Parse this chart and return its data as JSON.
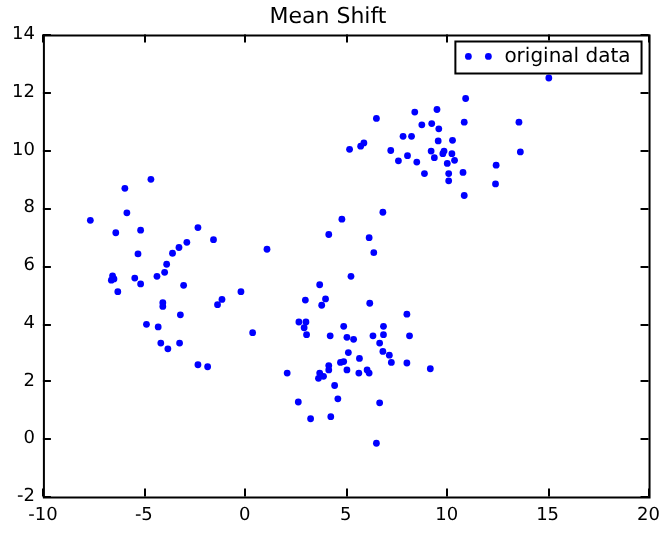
{
  "chart_data": {
    "type": "scatter",
    "title": "Mean Shift",
    "marker": "circle",
    "legend": "top right",
    "grid": false,
    "xlim": [
      -10,
      20
    ],
    "xticks": [
      -10,
      -5,
      0,
      5,
      10,
      15,
      20
    ],
    "ylim": [
      -2,
      14
    ],
    "yticks": [
      -2,
      0,
      2,
      4,
      6,
      8,
      10,
      12,
      14
    ],
    "series": [
      {
        "name": "original data",
        "color": "#0000ff",
        "x": [
          -7.65,
          -5.94,
          -4.65,
          -5.84,
          -6.39,
          -5.16,
          -5.29,
          -6.55,
          -6.48,
          -6.61,
          -6.29,
          -5.45,
          -5.16,
          -4.35,
          -3.97,
          -3.87,
          -3.58,
          -3.26,
          -2.87,
          -2.32,
          -1.55,
          -3.03,
          -4.06,
          -4.06,
          -4.87,
          -4.29,
          -4.16,
          -3.81,
          -3.23,
          -3.19,
          -1.35,
          -1.13,
          -0.19,
          -2.32,
          -1.84,
          0.39,
          1.1,
          2.1,
          2.65,
          3.26,
          4.26,
          2.68,
          2.94,
          3.03,
          3.06,
          3.0,
          3.71,
          3.81,
          4.0,
          4.23,
          3.71,
          3.65,
          3.9,
          4.16,
          4.16,
          4.45,
          4.61,
          4.74,
          4.9,
          4.9,
          5.06,
          5.13,
          5.39,
          5.06,
          5.68,
          5.65,
          6.06,
          6.16,
          6.19,
          6.35,
          6.68,
          6.84,
          6.87,
          6.87,
          7.16,
          7.26,
          8.03,
          8.16,
          8.03,
          9.19,
          6.68,
          6.52,
          4.16,
          4.81,
          5.26,
          6.16,
          6.39,
          6.84,
          5.19,
          5.74,
          5.9,
          6.52,
          7.23,
          7.61,
          7.84,
          8.06,
          8.26,
          8.42,
          8.52,
          8.77,
          8.9,
          9.23,
          9.26,
          9.39,
          9.52,
          9.61,
          9.58,
          9.81,
          9.87,
          10.1,
          10.03,
          10.1,
          10.26,
          10.29,
          10.39,
          10.81,
          10.87,
          10.94,
          10.87,
          12.45,
          12.42,
          13.58,
          13.65,
          15.06
        ],
        "values": [
          7.56,
          8.67,
          8.98,
          7.82,
          7.13,
          7.22,
          6.4,
          5.64,
          5.53,
          5.49,
          5.09,
          5.56,
          5.36,
          5.62,
          5.76,
          6.04,
          6.42,
          6.62,
          6.8,
          7.31,
          6.89,
          5.31,
          4.71,
          4.58,
          3.96,
          3.87,
          3.31,
          3.11,
          3.31,
          4.29,
          4.64,
          4.82,
          5.09,
          2.56,
          2.49,
          3.67,
          6.56,
          2.27,
          1.27,
          0.69,
          0.76,
          4.04,
          3.84,
          4.04,
          3.6,
          4.8,
          5.33,
          4.62,
          4.84,
          3.56,
          2.27,
          2.09,
          2.16,
          2.53,
          2.38,
          1.84,
          1.38,
          2.64,
          2.67,
          3.89,
          3.51,
          2.98,
          3.44,
          2.38,
          2.78,
          2.27,
          2.38,
          2.27,
          4.69,
          3.56,
          3.31,
          3.02,
          3.6,
          3.89,
          2.89,
          2.64,
          4.31,
          3.56,
          2.62,
          2.42,
          1.24,
          -0.16,
          7.07,
          7.6,
          5.62,
          6.96,
          6.44,
          7.84,
          10.02,
          10.13,
          10.24,
          11.09,
          9.98,
          9.62,
          10.47,
          9.8,
          10.47,
          11.31,
          9.58,
          10.87,
          9.18,
          9.96,
          10.91,
          9.73,
          11.4,
          10.73,
          10.31,
          9.87,
          9.96,
          9.18,
          9.53,
          8.93,
          9.87,
          10.33,
          9.64,
          9.22,
          10.96,
          11.78,
          8.42,
          9.47,
          8.82,
          10.96,
          9.93,
          12.49
        ]
      }
    ]
  }
}
